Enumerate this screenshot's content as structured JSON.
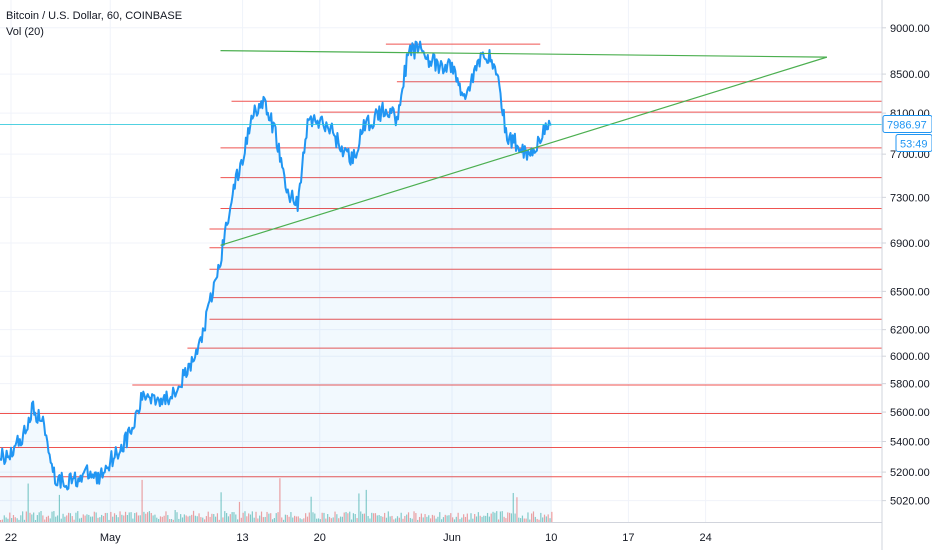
{
  "chart_data": {
    "type": "line",
    "title": "Bitcoin / U.S. Dollar, 60, COINBASE",
    "subtitle": "Vol (20)",
    "y_scale": "log",
    "ylim": [
      4950,
      9200
    ],
    "y_ticks": [
      {
        "value": 9000,
        "label": "9000.00"
      },
      {
        "value": 8500,
        "label": "8500.00"
      },
      {
        "value": 8100,
        "label": "8100.00"
      },
      {
        "value": 7700,
        "label": "7700.00"
      },
      {
        "value": 7300,
        "label": "7300.00"
      },
      {
        "value": 6900,
        "label": "6900.00"
      },
      {
        "value": 6500,
        "label": "6500.00"
      },
      {
        "value": 6200,
        "label": "6200.00"
      },
      {
        "value": 6000,
        "label": "6000.00"
      },
      {
        "value": 5800,
        "label": "5800.00"
      },
      {
        "value": 5600,
        "label": "5600.00"
      },
      {
        "value": 5400,
        "label": "5400.00"
      },
      {
        "value": 5200,
        "label": "5200.00"
      },
      {
        "value": 5020,
        "label": "5020.00"
      }
    ],
    "x_range": [
      "2019-04-21",
      "2019-07-10"
    ],
    "x_ticks": [
      {
        "date": "2019-04-22",
        "label": "22"
      },
      {
        "date": "2019-05-01",
        "label": "May"
      },
      {
        "date": "2019-05-13",
        "label": "13"
      },
      {
        "date": "2019-05-20",
        "label": "20"
      },
      {
        "date": "2019-06-01",
        "label": "Jun"
      },
      {
        "date": "2019-06-10",
        "label": "10"
      },
      {
        "date": "2019-06-17",
        "label": "17"
      },
      {
        "date": "2019-06-24",
        "label": "24"
      }
    ],
    "last_price": {
      "value": 7986.97,
      "label": "7986.97"
    },
    "countdown": "53:49",
    "series": [
      {
        "color": "#2196f3",
        "points": [
          [
            "2019-04-21",
            5290
          ],
          [
            "2019-04-22",
            5330
          ],
          [
            "2019-04-23",
            5430
          ],
          [
            "2019-04-24",
            5620
          ],
          [
            "2019-04-25",
            5510
          ],
          [
            "2019-04-26",
            5160
          ],
          [
            "2019-04-27",
            5140
          ],
          [
            "2019-04-28",
            5160
          ],
          [
            "2019-04-29",
            5190
          ],
          [
            "2019-04-30",
            5160
          ],
          [
            "2019-05-01",
            5280
          ],
          [
            "2019-05-02",
            5360
          ],
          [
            "2019-05-03",
            5480
          ],
          [
            "2019-05-04",
            5720
          ],
          [
            "2019-05-05",
            5710
          ],
          [
            "2019-05-06",
            5680
          ],
          [
            "2019-05-07",
            5780
          ],
          [
            "2019-05-08",
            5880
          ],
          [
            "2019-05-09",
            6050
          ],
          [
            "2019-05-10",
            6380
          ],
          [
            "2019-05-11",
            6750
          ],
          [
            "2019-05-12",
            7300
          ],
          [
            "2019-05-13",
            7650
          ],
          [
            "2019-05-14",
            8150
          ],
          [
            "2019-05-15",
            8180
          ],
          [
            "2019-05-16",
            7900
          ],
          [
            "2019-05-17",
            7350
          ],
          [
            "2019-05-18",
            7250
          ],
          [
            "2019-05-19",
            8050
          ],
          [
            "2019-05-20",
            8000
          ],
          [
            "2019-05-21",
            7950
          ],
          [
            "2019-05-22",
            7750
          ],
          [
            "2019-05-23",
            7650
          ],
          [
            "2019-05-24",
            7950
          ],
          [
            "2019-05-25",
            8050
          ],
          [
            "2019-05-26",
            8150
          ],
          [
            "2019-05-27",
            8050
          ],
          [
            "2019-05-28",
            8700
          ],
          [
            "2019-05-29",
            8800
          ],
          [
            "2019-05-30",
            8650
          ],
          [
            "2019-05-31",
            8550
          ],
          [
            "2019-06-01",
            8600
          ],
          [
            "2019-06-02",
            8250
          ],
          [
            "2019-06-03",
            8500
          ],
          [
            "2019-06-04",
            8750
          ],
          [
            "2019-06-05",
            8550
          ],
          [
            "2019-06-06",
            7850
          ],
          [
            "2019-06-07",
            7800
          ],
          [
            "2019-06-08",
            7690
          ],
          [
            "2019-06-09",
            7860
          ],
          [
            "2019-06-10",
            7986.97
          ]
        ]
      }
    ],
    "horizontal_levels": {
      "color": "#ef5350",
      "items": [
        {
          "price": 8820,
          "from": "2019-05-26",
          "to": "2019-06-09"
        },
        {
          "price": 8420,
          "from": "2019-05-27",
          "to": "2019-07-10"
        },
        {
          "price": 8220,
          "from": "2019-05-12",
          "to": "2019-07-10"
        },
        {
          "price": 8110,
          "from": "2019-05-20",
          "to": "2019-07-10"
        },
        {
          "price": 7760,
          "from": "2019-05-11",
          "to": "2019-07-10"
        },
        {
          "price": 7480,
          "from": "2019-05-11",
          "to": "2019-07-10"
        },
        {
          "price": 7200,
          "from": "2019-05-11",
          "to": "2019-07-10"
        },
        {
          "price": 7020,
          "from": "2019-05-10",
          "to": "2019-07-10"
        },
        {
          "price": 6860,
          "from": "2019-05-10",
          "to": "2019-07-10"
        },
        {
          "price": 6680,
          "from": "2019-05-10",
          "to": "2019-07-10"
        },
        {
          "price": 6450,
          "from": "2019-05-10",
          "to": "2019-07-10"
        },
        {
          "price": 6280,
          "from": "2019-05-10",
          "to": "2019-07-10"
        },
        {
          "price": 6060,
          "from": "2019-05-08",
          "to": "2019-07-10"
        },
        {
          "price": 5790,
          "from": "2019-05-03",
          "to": "2019-07-10"
        },
        {
          "price": 5590,
          "from": "2019-04-21",
          "to": "2019-07-10"
        },
        {
          "price": 5360,
          "from": "2019-04-21",
          "to": "2019-07-10"
        },
        {
          "price": 5170,
          "from": "2019-04-21",
          "to": "2019-07-10"
        }
      ]
    },
    "trend_lines": {
      "color": "#4caf50",
      "items": [
        {
          "from": [
            "2019-05-11",
            8750
          ],
          "to": [
            "2019-07-05",
            8680
          ]
        },
        {
          "from": [
            "2019-05-11",
            6880
          ],
          "to": [
            "2019-07-05",
            8680
          ]
        }
      ]
    },
    "volume": {
      "color_up": "#26a69a",
      "color_down": "#ef5350",
      "range": [
        "2019-04-21",
        "2019-06-10"
      ]
    }
  }
}
